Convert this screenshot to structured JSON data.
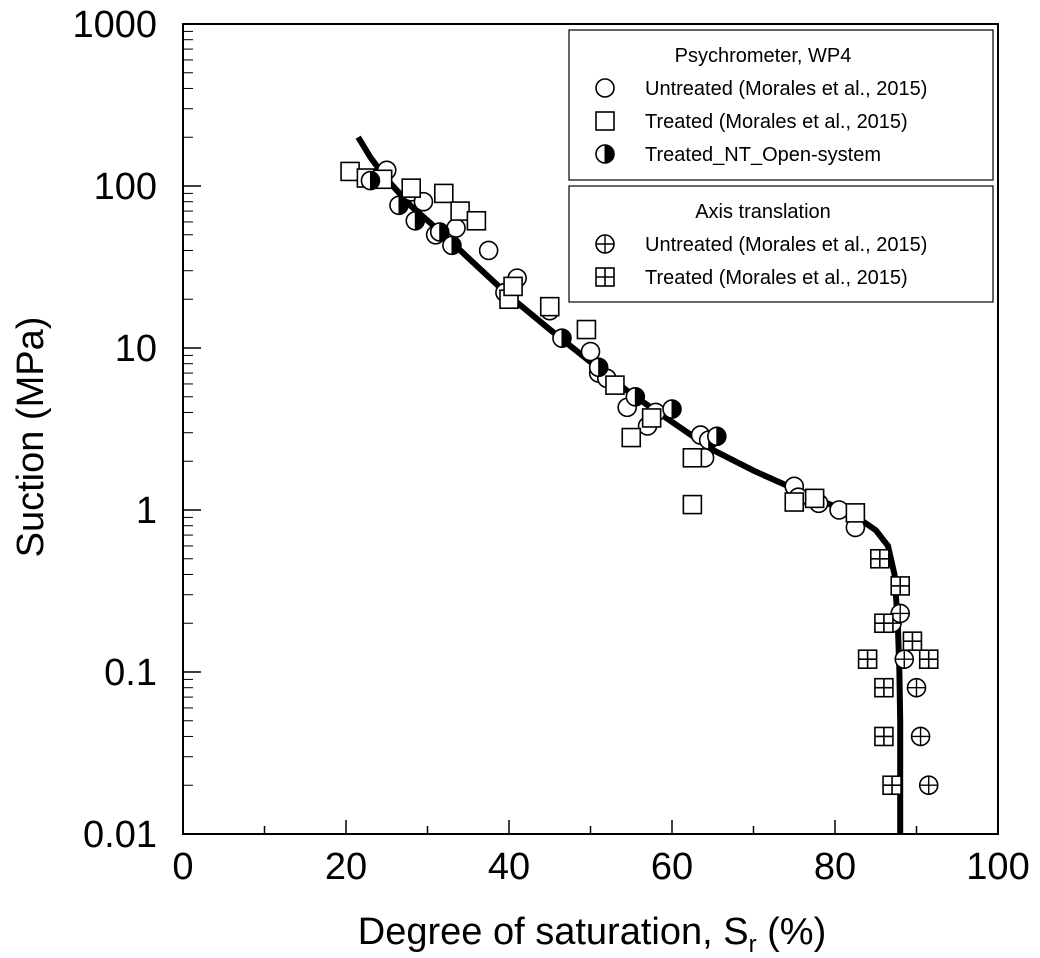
{
  "chart_data": {
    "type": "scatter",
    "xlabel": "Degree of saturation, S",
    "xlabel_subscript": "r",
    "xlabel_suffix": " (%)",
    "ylabel": "Suction (MPa)",
    "xlim": [
      0,
      100
    ],
    "ylim": [
      0.01,
      1000
    ],
    "yscale": "log",
    "xticks": [
      0,
      20,
      40,
      60,
      80,
      100
    ],
    "xtick_labels": [
      "0",
      "20",
      "40",
      "60",
      "80",
      "100"
    ],
    "yticks": [
      0.01,
      0.1,
      1,
      10,
      100,
      1000
    ],
    "ytick_labels": [
      "0.01",
      "0.1",
      "1",
      "10",
      "100",
      "1000"
    ],
    "grid": false,
    "legend_placement": "top-right",
    "legend_groups": [
      {
        "title": "Psychrometer, WP4",
        "entries": [
          {
            "marker": "circle",
            "label": "Untreated (Morales et al., 2015)"
          },
          {
            "marker": "square",
            "label": "Treated (Morales et al., 2015)"
          },
          {
            "marker": "half-circle",
            "label": "Treated_NT_Open-system"
          }
        ]
      },
      {
        "title": "Axis translation",
        "entries": [
          {
            "marker": "circle-plus",
            "label": "Untreated (Morales et al., 2015)"
          },
          {
            "marker": "square-plus",
            "label": "Treated (Morales et al., 2015)"
          }
        ]
      }
    ],
    "series": [
      {
        "name": "Untreated (Morales et al., 2015)",
        "method": "Psychrometer, WP4",
        "marker": "circle",
        "points": [
          [
            25,
            125
          ],
          [
            28,
            92
          ],
          [
            29.5,
            80
          ],
          [
            31,
            50
          ],
          [
            33.5,
            55
          ],
          [
            37.5,
            40
          ],
          [
            39.5,
            22
          ],
          [
            41,
            27
          ],
          [
            45,
            17
          ],
          [
            50,
            9.5
          ],
          [
            51,
            7
          ],
          [
            52,
            6.5
          ],
          [
            54.5,
            4.3
          ],
          [
            57,
            3.3
          ],
          [
            58,
            4
          ],
          [
            63.5,
            2.9
          ],
          [
            64,
            2.1
          ],
          [
            75,
            1.4
          ],
          [
            75.5,
            1.2
          ],
          [
            78,
            1.1
          ],
          [
            80.5,
            1
          ],
          [
            82.5,
            0.78
          ]
        ]
      },
      {
        "name": "Treated (Morales et al., 2015)",
        "method": "Psychrometer, WP4",
        "marker": "square",
        "points": [
          [
            20.5,
            123
          ],
          [
            22.5,
            112
          ],
          [
            24.5,
            110
          ],
          [
            28,
            97
          ],
          [
            32,
            90
          ],
          [
            34,
            70
          ],
          [
            36,
            61
          ],
          [
            40,
            20
          ],
          [
            40.5,
            24
          ],
          [
            45,
            18
          ],
          [
            49.5,
            13
          ],
          [
            53,
            5.9
          ],
          [
            55,
            2.8
          ],
          [
            57.5,
            3.7
          ],
          [
            62.5,
            1.08
          ],
          [
            62.5,
            2.1
          ],
          [
            75,
            1.12
          ],
          [
            77.5,
            1.18
          ],
          [
            82.5,
            0.96
          ]
        ]
      },
      {
        "name": "Treated_NT_Open-system",
        "method": "Psychrometer, WP4",
        "marker": "half-circle",
        "points": [
          [
            23,
            108
          ],
          [
            26.5,
            76
          ],
          [
            28.5,
            61
          ],
          [
            31.5,
            52
          ],
          [
            33,
            43
          ],
          [
            46.5,
            11.5
          ],
          [
            51,
            7.6
          ],
          [
            55.5,
            5
          ],
          [
            60,
            4.2
          ],
          [
            64.5,
            2.7
          ],
          [
            65.5,
            2.85
          ]
        ]
      },
      {
        "name": "Untreated (Morales et al., 2015)",
        "method": "Axis translation",
        "marker": "circle-plus",
        "points": [
          [
            87,
            0.2
          ],
          [
            88,
            0.23
          ],
          [
            88.5,
            0.12
          ],
          [
            90,
            0.08
          ],
          [
            90.5,
            0.04
          ],
          [
            91.5,
            0.02
          ]
        ]
      },
      {
        "name": "Treated (Morales et al., 2015)",
        "method": "Axis translation",
        "marker": "square-plus",
        "points": [
          [
            85.5,
            0.5
          ],
          [
            88,
            0.34
          ],
          [
            86,
            0.2
          ],
          [
            89.5,
            0.155
          ],
          [
            84,
            0.12
          ],
          [
            91.5,
            0.12
          ],
          [
            86,
            0.08
          ],
          [
            86,
            0.04
          ],
          [
            87,
            0.02
          ]
        ]
      }
    ],
    "fit_curve": {
      "style": "thick solid black line",
      "points": [
        [
          21.5,
          200
        ],
        [
          23,
          150
        ],
        [
          25,
          110
        ],
        [
          28,
          75
        ],
        [
          32,
          50
        ],
        [
          35,
          36
        ],
        [
          40,
          21
        ],
        [
          45,
          13
        ],
        [
          50,
          8.2
        ],
        [
          55,
          5.2
        ],
        [
          60,
          3.5
        ],
        [
          65,
          2.35
        ],
        [
          70,
          1.75
        ],
        [
          75,
          1.35
        ],
        [
          80,
          1.05
        ],
        [
          83,
          0.88
        ],
        [
          85,
          0.75
        ],
        [
          86.5,
          0.6
        ],
        [
          87.3,
          0.4
        ],
        [
          87.7,
          0.2
        ],
        [
          87.9,
          0.1
        ],
        [
          88,
          0.05
        ],
        [
          88,
          0.02
        ],
        [
          88,
          0.01
        ]
      ]
    }
  }
}
